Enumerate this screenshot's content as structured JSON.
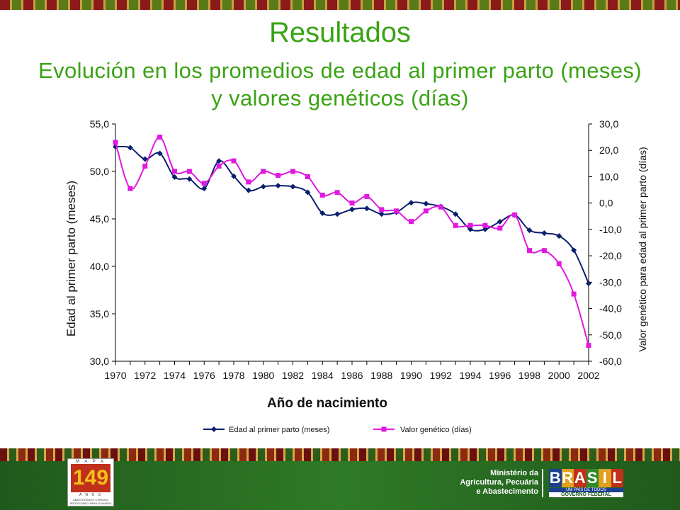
{
  "header": {
    "title": "Resultados",
    "subtitle_line1": "Evolución en los promedios de edad al primer parto (meses)",
    "subtitle_line2": "y valores genéticos (días)"
  },
  "chart_data": {
    "type": "line",
    "xlabel": "Año de nacimiento",
    "ylabel_left": "Edad al primer parto  (meses)",
    "ylabel_right": "Valor genético para edad al primer parto  (días)",
    "ylim_left": [
      30,
      55
    ],
    "ylim_right": [
      -60,
      30
    ],
    "y_ticks_left": [
      "55,0",
      "50,0",
      "45,0",
      "40,0",
      "35,0",
      "30,0"
    ],
    "y_ticks_right": [
      "30,0",
      "20,0",
      "10,0",
      "0,0",
      "-10,0",
      "-20,0",
      "-30,0",
      "-40,0",
      "-50,0",
      "-60,0"
    ],
    "x_ticks": [
      "1970",
      "1972",
      "1974",
      "1976",
      "1978",
      "1980",
      "1982",
      "1984",
      "1986",
      "1988",
      "1990",
      "1992",
      "1994",
      "1996",
      "1998",
      "2000",
      "2002"
    ],
    "x": [
      1970,
      1971,
      1972,
      1973,
      1974,
      1975,
      1976,
      1977,
      1978,
      1979,
      1980,
      1981,
      1982,
      1983,
      1984,
      1985,
      1986,
      1987,
      1988,
      1989,
      1990,
      1991,
      1992,
      1993,
      1994,
      1995,
      1996,
      1997,
      1998,
      1999,
      2000,
      2001,
      2002
    ],
    "series": [
      {
        "name": "Edad al primer parto (meses)",
        "axis": "left",
        "color": "#0a1f6e",
        "marker": "diamond",
        "values": [
          52.6,
          52.5,
          51.3,
          51.9,
          49.4,
          49.2,
          48.2,
          51.1,
          49.5,
          48.0,
          48.4,
          48.5,
          48.4,
          47.8,
          45.6,
          45.5,
          46.0,
          46.1,
          45.5,
          45.7,
          46.7,
          46.6,
          46.3,
          45.5,
          43.9,
          43.9,
          44.7,
          45.4,
          43.8,
          43.5,
          43.2,
          41.7,
          38.2
        ],
        "legend": "Edad al primer parto (meses)"
      },
      {
        "name": "Valor genético (días)",
        "axis": "right",
        "color": "#e018e0",
        "marker": "square",
        "values": [
          23,
          5.5,
          14,
          25,
          12,
          12,
          7.5,
          14,
          16,
          8,
          12,
          10.5,
          12,
          10,
          3,
          4,
          0,
          2.5,
          -2.5,
          -3,
          -7,
          -3,
          -1.5,
          -8.5,
          -8.5,
          -8.5,
          -9.5,
          -4.5,
          -18,
          -18,
          -23,
          -34.5,
          -54
        ],
        "legend": "Valor genético (días)"
      }
    ]
  },
  "footer": {
    "logo_mapa": "M A P A",
    "logo_number": "149",
    "logo_anos": "A N O S",
    "logo_sub": "ABASTECENDO O BRASIL PRODUZINDO PARA O MUNDO",
    "ministry_line1": "Ministério da",
    "ministry_line2": "Agricultura, Pecuária",
    "ministry_line3": "e Abastecimento",
    "brasil_letters": [
      "B",
      "R",
      "A",
      "S",
      "I",
      "L"
    ],
    "brasil_colors": [
      "#1b3f8f",
      "#e0a020",
      "#c0301a",
      "#2f8a2a",
      "#e0a020",
      "#c0301a"
    ],
    "brasil_tag": "UM PAÍS DE TODOS",
    "brasil_gov": "GOVERNO FEDERAL"
  }
}
